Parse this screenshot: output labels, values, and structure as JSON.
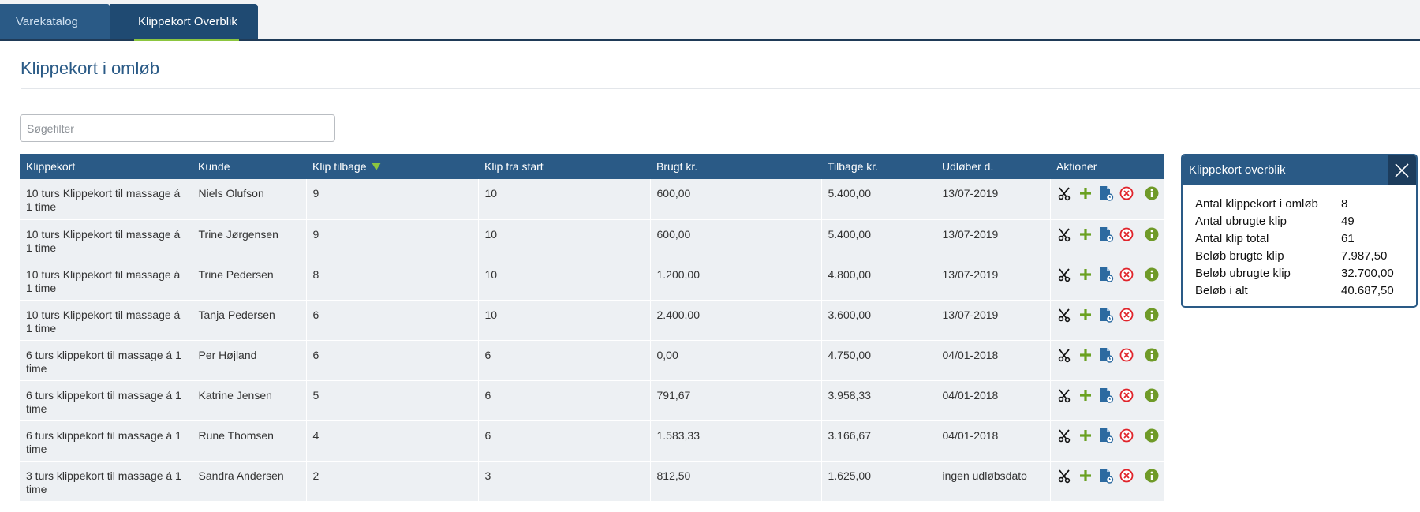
{
  "tabs": [
    {
      "label": "Varekatalog",
      "active": false
    },
    {
      "label": "Klippekort Overblik",
      "active": true
    }
  ],
  "page": {
    "title": "Klippekort i omløb",
    "search_placeholder": "Søgefilter"
  },
  "table": {
    "headers": {
      "card": "Klippekort",
      "customer": "Kunde",
      "clips_left": "Klip tilbage",
      "clips_start": "Klip fra start",
      "used": "Brugt kr.",
      "remaining": "Tilbage kr.",
      "expires": "Udløber d.",
      "actions": "Aktioner"
    },
    "rows": [
      {
        "card": "10 turs Klippekort til massage á 1 time",
        "customer": "Niels Olufson",
        "clips_left": "9",
        "clips_start": "10",
        "used": "600,00",
        "remaining": "5.400,00",
        "expires": "13/07-2019"
      },
      {
        "card": "10 turs Klippekort til massage á 1 time",
        "customer": "Trine Jørgensen",
        "clips_left": "9",
        "clips_start": "10",
        "used": "600,00",
        "remaining": "5.400,00",
        "expires": "13/07-2019"
      },
      {
        "card": "10 turs Klippekort til massage á 1 time",
        "customer": "Trine Pedersen",
        "clips_left": "8",
        "clips_start": "10",
        "used": "1.200,00",
        "remaining": "4.800,00",
        "expires": "13/07-2019"
      },
      {
        "card": "10 turs Klippekort til massage á 1 time",
        "customer": "Tanja Pedersen",
        "clips_left": "6",
        "clips_start": "10",
        "used": "2.400,00",
        "remaining": "3.600,00",
        "expires": "13/07-2019"
      },
      {
        "card": "6 turs klippekort til massage á 1 time",
        "customer": "Per Højland",
        "clips_left": "6",
        "clips_start": "6",
        "used": "0,00",
        "remaining": "4.750,00",
        "expires": "04/01-2018"
      },
      {
        "card": "6 turs klippekort til massage á 1 time",
        "customer": "Katrine Jensen",
        "clips_left": "5",
        "clips_start": "6",
        "used": "791,67",
        "remaining": "3.958,33",
        "expires": "04/01-2018"
      },
      {
        "card": "6 turs klippekort til massage á 1 time",
        "customer": "Rune Thomsen",
        "clips_left": "4",
        "clips_start": "6",
        "used": "1.583,33",
        "remaining": "3.166,67",
        "expires": "04/01-2018"
      },
      {
        "card": "3 turs klippekort til massage á 1 time",
        "customer": "Sandra Andersen",
        "clips_left": "2",
        "clips_start": "3",
        "used": "812,50",
        "remaining": "1.625,00",
        "expires": "ingen udløbsdato"
      }
    ],
    "row_actions": [
      "scissors-icon",
      "plus-icon",
      "document-clock-icon",
      "cancel-icon",
      "info-icon"
    ]
  },
  "panel": {
    "title": "Klippekort overblik",
    "stats": [
      {
        "label": "Antal klippekort i omløb",
        "value": "8"
      },
      {
        "label": "Antal ubrugte klip",
        "value": "49"
      },
      {
        "label": "Antal klip total",
        "value": "61"
      },
      {
        "label": "Beløb brugte klip",
        "value": "7.987,50"
      },
      {
        "label": "Beløb ubrugte klip",
        "value": "32.700,00"
      },
      {
        "label": "Beløb i alt",
        "value": "40.687,50"
      }
    ]
  },
  "colors": {
    "primary": "#2a5a86",
    "dark": "#1f3a57",
    "accent_green": "#8cc63f",
    "row_bg": "#edf0f3",
    "cancel_red": "#e0242b",
    "doc_blue": "#2c6aa0",
    "info_green": "#6f9a28"
  }
}
